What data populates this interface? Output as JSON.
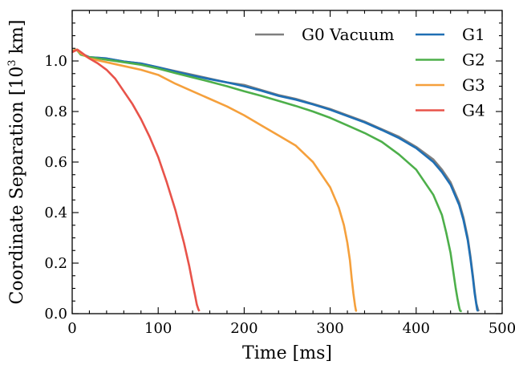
{
  "chart_data": {
    "type": "line",
    "xlabel": "Time [ms]",
    "ylabel_parts": {
      "prefix": "Coordinate Separation [10",
      "sup": "3",
      "suffix": " km]"
    },
    "xlim": [
      0,
      500
    ],
    "ylim": [
      0.0,
      1.2
    ],
    "xticks": [
      0,
      100,
      200,
      300,
      400,
      500
    ],
    "xtick_labels": [
      "0",
      "100",
      "200",
      "300",
      "400",
      "500"
    ],
    "yticks": [
      0.0,
      0.2,
      0.4,
      0.6,
      0.8,
      1.0
    ],
    "ytick_labels": [
      "0.0",
      "0.2",
      "0.4",
      "0.6",
      "0.8",
      "1.0"
    ],
    "grid": false,
    "legend_position": "top-right",
    "series": [
      {
        "name": "G0 Vacuum",
        "color": "#7f7f7f",
        "x": [
          0,
          5,
          10,
          20,
          40,
          60,
          80,
          100,
          120,
          140,
          160,
          180,
          200,
          220,
          240,
          260,
          280,
          300,
          320,
          340,
          360,
          380,
          400,
          420,
          430,
          440,
          450,
          455,
          460,
          463,
          466,
          468,
          470,
          472,
          473
        ],
        "y": [
          1.04,
          1.045,
          1.03,
          1.015,
          1.01,
          0.998,
          0.99,
          0.975,
          0.96,
          0.945,
          0.93,
          0.915,
          0.905,
          0.885,
          0.865,
          0.85,
          0.83,
          0.81,
          0.785,
          0.76,
          0.73,
          0.7,
          0.66,
          0.61,
          0.57,
          0.52,
          0.44,
          0.38,
          0.3,
          0.23,
          0.15,
          0.09,
          0.04,
          0.015,
          0.01
        ]
      },
      {
        "name": "G1",
        "color": "#1f6fb4",
        "x": [
          0,
          5,
          10,
          20,
          40,
          60,
          80,
          100,
          120,
          140,
          160,
          180,
          200,
          220,
          240,
          260,
          280,
          300,
          320,
          340,
          360,
          380,
          400,
          420,
          430,
          440,
          450,
          455,
          460,
          463,
          466,
          468,
          470,
          471,
          472
        ],
        "y": [
          1.04,
          1.045,
          1.03,
          1.015,
          1.01,
          0.998,
          0.99,
          0.975,
          0.958,
          0.942,
          0.928,
          0.915,
          0.9,
          0.882,
          0.862,
          0.847,
          0.828,
          0.807,
          0.782,
          0.757,
          0.727,
          0.695,
          0.655,
          0.6,
          0.56,
          0.51,
          0.43,
          0.37,
          0.29,
          0.22,
          0.14,
          0.08,
          0.035,
          0.015,
          0.01
        ]
      },
      {
        "name": "G2",
        "color": "#4daf4a",
        "x": [
          0,
          5,
          10,
          20,
          40,
          60,
          80,
          100,
          120,
          140,
          160,
          180,
          200,
          220,
          240,
          260,
          280,
          300,
          320,
          340,
          360,
          380,
          400,
          420,
          430,
          435,
          440,
          443,
          446,
          448,
          450,
          451,
          452,
          453
        ],
        "y": [
          1.04,
          1.045,
          1.025,
          1.015,
          1.005,
          0.995,
          0.985,
          0.97,
          0.952,
          0.935,
          0.918,
          0.9,
          0.88,
          0.862,
          0.842,
          0.822,
          0.8,
          0.775,
          0.745,
          0.715,
          0.68,
          0.63,
          0.57,
          0.47,
          0.39,
          0.32,
          0.24,
          0.17,
          0.1,
          0.06,
          0.025,
          0.012,
          0.01,
          0.01
        ]
      },
      {
        "name": "G3",
        "color": "#f5a03c",
        "x": [
          0,
          5,
          10,
          20,
          40,
          60,
          80,
          100,
          120,
          140,
          160,
          180,
          200,
          220,
          240,
          260,
          280,
          300,
          310,
          316,
          320,
          323,
          325,
          327,
          329,
          330,
          331
        ],
        "y": [
          1.04,
          1.045,
          1.03,
          1.01,
          0.995,
          0.98,
          0.965,
          0.945,
          0.91,
          0.88,
          0.85,
          0.82,
          0.785,
          0.745,
          0.705,
          0.665,
          0.6,
          0.5,
          0.42,
          0.35,
          0.28,
          0.21,
          0.14,
          0.08,
          0.03,
          0.012,
          0.01
        ]
      },
      {
        "name": "G4",
        "color": "#e8534a",
        "x": [
          0,
          3,
          6,
          10,
          20,
          30,
          40,
          50,
          60,
          70,
          80,
          90,
          100,
          110,
          120,
          130,
          136,
          140,
          143,
          145,
          147,
          148
        ],
        "y": [
          1.035,
          1.04,
          1.045,
          1.035,
          1.01,
          0.99,
          0.965,
          0.93,
          0.88,
          0.83,
          0.77,
          0.7,
          0.62,
          0.52,
          0.41,
          0.28,
          0.19,
          0.12,
          0.07,
          0.035,
          0.015,
          0.01
        ]
      }
    ],
    "legend_layout": [
      [
        "G0 Vacuum",
        "G1"
      ],
      [
        "",
        "G2"
      ],
      [
        "",
        "G3"
      ],
      [
        "",
        "G4"
      ]
    ]
  }
}
